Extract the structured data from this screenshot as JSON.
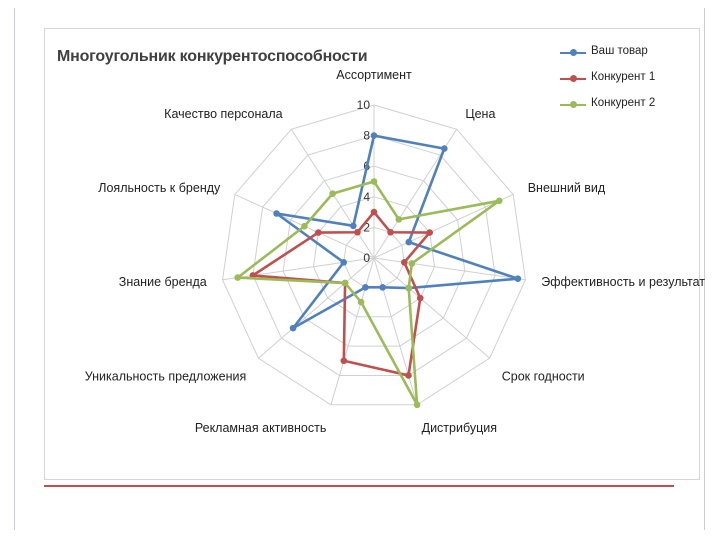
{
  "chart_data": {
    "type": "radar",
    "title": "Многоугольник конкурентоспособности",
    "categories": [
      "Ассортимент",
      "Цена",
      "Внешний вид",
      "Эффективность и результат",
      "Срок годности",
      "Дистрибуция",
      "Рекламная активность",
      "Уникальность предложения",
      "Знание бренда",
      "Лояльность к бренду",
      "Качество персонала"
    ],
    "ticks": [
      "0",
      "2",
      "4",
      "6",
      "8",
      "10"
    ],
    "rmax": 10,
    "grid": true,
    "legend_position": "top-right",
    "series": [
      {
        "name": "Ваш товар",
        "color": "#4f81bd",
        "values": [
          8,
          8.5,
          2.5,
          9.5,
          3,
          2,
          2,
          7,
          2,
          7,
          2.5
        ]
      },
      {
        "name": "Конкурент 1",
        "color": "#c0504d",
        "values": [
          3,
          2,
          4,
          2,
          4,
          8,
          7,
          2.5,
          8,
          4,
          2
        ]
      },
      {
        "name": "Конкурент 2",
        "color": "#9bbb59",
        "values": [
          5,
          3,
          9,
          2.5,
          3,
          10,
          3,
          2.5,
          9,
          5,
          5
        ]
      }
    ]
  }
}
